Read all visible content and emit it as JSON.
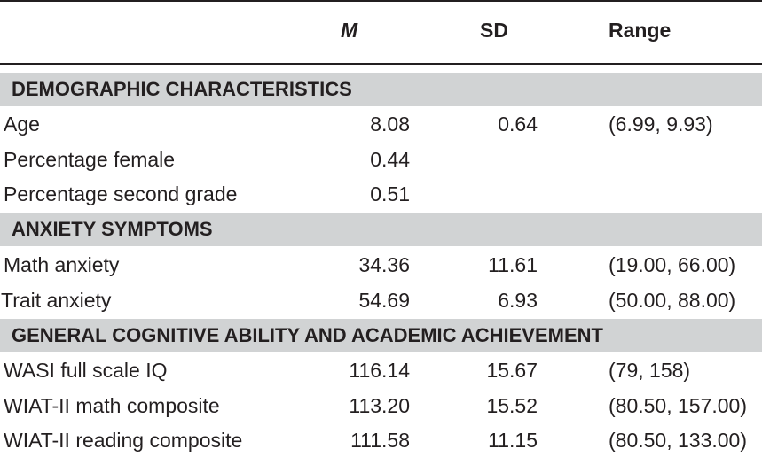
{
  "header": {
    "m": "M",
    "sd": "SD",
    "range": "Range"
  },
  "sections": [
    {
      "title": "DEMOGRAPHIC CHARACTERISTICS",
      "rows": [
        {
          "label": "Age",
          "m": "8.08",
          "sd": "0.64",
          "range": "(6.99, 9.93)"
        },
        {
          "label": "Percentage female",
          "m": "0.44",
          "sd": "",
          "range": ""
        },
        {
          "label": "Percentage second grade",
          "m": "0.51",
          "sd": "",
          "range": ""
        }
      ]
    },
    {
      "title": "ANXIETY SYMPTOMS",
      "rows": [
        {
          "label": "Math anxiety",
          "m": "34.36",
          "sd": "11.61",
          "range": "(19.00, 66.00)"
        },
        {
          "label": "Trait anxiety",
          "m": "54.69",
          "sd": "6.93",
          "range": "(50.00, 88.00)"
        }
      ]
    },
    {
      "title": "GENERAL COGNITIVE ABILITY AND ACADEMIC ACHIEVEMENT",
      "rows": [
        {
          "label": "WASI full scale IQ",
          "m": "116.14",
          "sd": "15.67",
          "range": "(79, 158)"
        },
        {
          "label": "WIAT-II math composite",
          "m": "113.20",
          "sd": "15.52",
          "range": "(80.50, 157.00)"
        },
        {
          "label": "WIAT-II reading composite",
          "m": "111.58",
          "sd": "11.15",
          "range": "(80.50, 133.00)"
        }
      ]
    }
  ]
}
